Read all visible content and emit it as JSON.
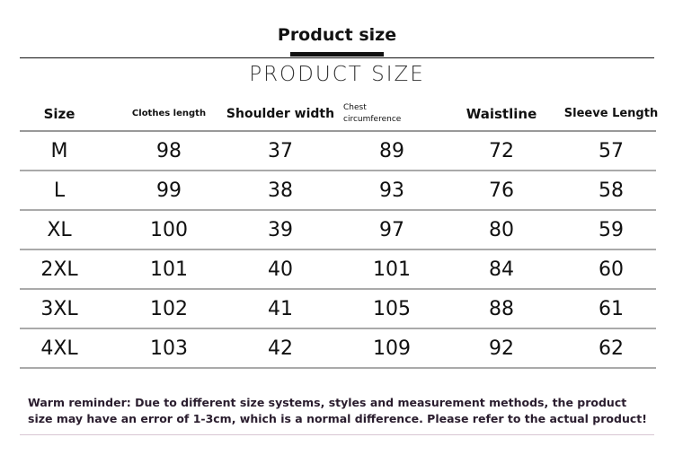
{
  "header": {
    "title": "Product size",
    "subtitle": "PRODUCT SIZE"
  },
  "table": {
    "columns": [
      "Size",
      "Clothes length",
      "Shoulder width",
      "Chest circumference",
      "Waistline",
      "Sleeve Length"
    ],
    "chest_header_lines": [
      "Chest",
      "circumference"
    ],
    "rows": [
      [
        "M",
        "98",
        "37",
        "89",
        "72",
        "57"
      ],
      [
        "L",
        "99",
        "38",
        "93",
        "76",
        "58"
      ],
      [
        "XL",
        "100",
        "39",
        "97",
        "80",
        "59"
      ],
      [
        "2XL",
        "101",
        "40",
        "101",
        "84",
        "60"
      ],
      [
        "3XL",
        "102",
        "41",
        "105",
        "88",
        "61"
      ],
      [
        "4XL",
        "103",
        "42",
        "109",
        "92",
        "62"
      ]
    ]
  },
  "footer": {
    "reminder": "Warm reminder: Due to different size systems, styles and measurement methods, the product size may have an error of 1-3cm, which is a normal difference. Please refer to the actual product!"
  },
  "colors": {
    "text": "#111111",
    "reminder_text": "#2a1d2e",
    "rule": "#aaaaaa",
    "bottom_rule": "#d8c6d3"
  }
}
